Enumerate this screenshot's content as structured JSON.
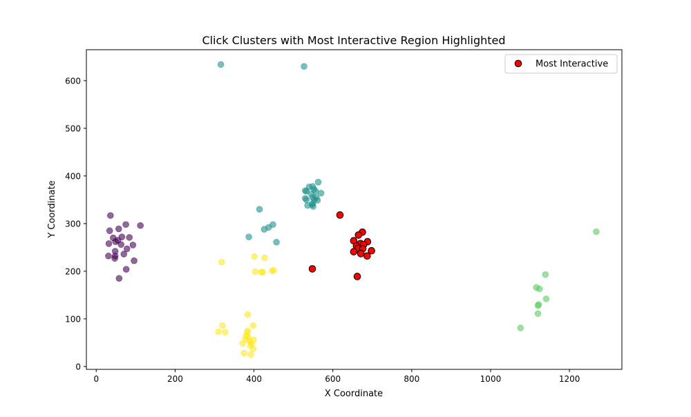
{
  "chart_data": {
    "type": "scatter",
    "title": "Click Clusters with Most Interactive Region Highlighted",
    "xlabel": "X Coordinate",
    "ylabel": "Y Coordinate",
    "xlim": [
      -25,
      1333
    ],
    "ylim": [
      -6,
      665
    ],
    "xticks": [
      0,
      200,
      400,
      600,
      800,
      1000,
      1200
    ],
    "yticks": [
      0,
      100,
      200,
      300,
      400,
      500,
      600
    ],
    "grid": false,
    "legend_position": "top-right",
    "series": [
      {
        "color": "#440154",
        "alpha": 0.6,
        "points": [
          [
            36,
            317
          ],
          [
            34,
            285
          ],
          [
            57,
            289
          ],
          [
            75,
            298
          ],
          [
            112,
            296
          ],
          [
            84,
            271
          ],
          [
            43,
            270
          ],
          [
            65,
            272
          ],
          [
            55,
            265
          ],
          [
            49,
            262
          ],
          [
            32,
            258
          ],
          [
            63,
            256
          ],
          [
            93,
            255
          ],
          [
            78,
            247
          ],
          [
            48,
            242
          ],
          [
            70,
            236
          ],
          [
            31,
            232
          ],
          [
            48,
            232
          ],
          [
            47,
            227
          ],
          [
            96,
            222
          ],
          [
            76,
            204
          ],
          [
            58,
            185
          ]
        ]
      },
      {
        "color": "#21918c",
        "alpha": 0.6,
        "points": [
          [
            316,
            634
          ],
          [
            527,
            630
          ],
          [
            563,
            387
          ],
          [
            549,
            378
          ],
          [
            540,
            377
          ],
          [
            552,
            372
          ],
          [
            556,
            368
          ],
          [
            530,
            369
          ],
          [
            533,
            368
          ],
          [
            570,
            364
          ],
          [
            545,
            362
          ],
          [
            549,
            355
          ],
          [
            558,
            355
          ],
          [
            553,
            350
          ],
          [
            561,
            349
          ],
          [
            530,
            353
          ],
          [
            533,
            350
          ],
          [
            549,
            342
          ],
          [
            547,
            340
          ],
          [
            536,
            338
          ],
          [
            550,
            336
          ],
          [
            414,
            330
          ],
          [
            448,
            298
          ],
          [
            437,
            292
          ],
          [
            426,
            288
          ],
          [
            387,
            272
          ],
          [
            457,
            261
          ]
        ]
      },
      {
        "color": "#5ec962",
        "alpha": 0.6,
        "points": [
          [
            1268,
            283
          ],
          [
            1139,
            193
          ],
          [
            1116,
            166
          ],
          [
            1124,
            163
          ],
          [
            1141,
            142
          ],
          [
            1122,
            130
          ],
          [
            1120,
            128
          ],
          [
            1120,
            111
          ],
          [
            1076,
            81
          ]
        ]
      },
      {
        "color": "#fde725",
        "alpha": 0.6,
        "points": [
          [
            401,
            231
          ],
          [
            427,
            228
          ],
          [
            318,
            219
          ],
          [
            403,
            199
          ],
          [
            419,
            198
          ],
          [
            422,
            198
          ],
          [
            450,
            202
          ],
          [
            446,
            201
          ],
          [
            384,
            109
          ],
          [
            320,
            86
          ],
          [
            398,
            86
          ],
          [
            384,
            75
          ],
          [
            383,
            71
          ],
          [
            310,
            73
          ],
          [
            327,
            72
          ],
          [
            380,
            64
          ],
          [
            385,
            61
          ],
          [
            378,
            57
          ],
          [
            389,
            53
          ],
          [
            399,
            56
          ],
          [
            371,
            48
          ],
          [
            394,
            48
          ],
          [
            391,
            44
          ],
          [
            398,
            37
          ],
          [
            375,
            28
          ],
          [
            392,
            25
          ]
        ]
      }
    ],
    "highlight": {
      "name": "Most Interactive",
      "color": "#ff0000",
      "edge_color": "#000000",
      "points": [
        [
          618,
          318
        ],
        [
          675,
          282
        ],
        [
          665,
          276
        ],
        [
          653,
          264
        ],
        [
          688,
          262
        ],
        [
          670,
          258
        ],
        [
          678,
          256
        ],
        [
          660,
          253
        ],
        [
          664,
          248
        ],
        [
          676,
          247
        ],
        [
          698,
          243
        ],
        [
          653,
          241
        ],
        [
          671,
          237
        ],
        [
          687,
          232
        ],
        [
          548,
          205
        ],
        [
          662,
          189
        ]
      ]
    }
  }
}
